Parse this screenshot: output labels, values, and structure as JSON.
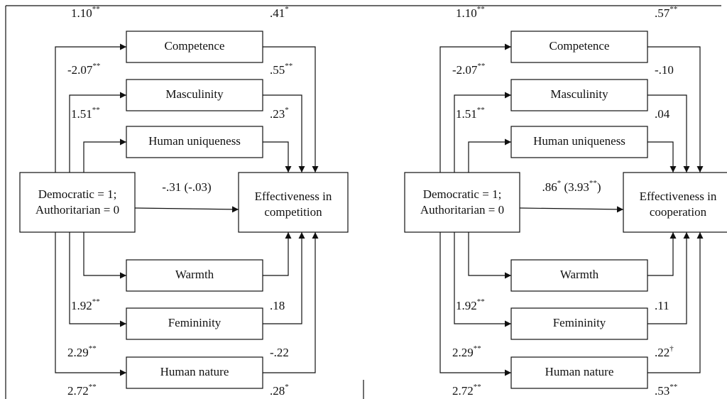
{
  "panels": [
    {
      "source_label": [
        "Democratic = 1;",
        "Authoritarian = 0"
      ],
      "outcome_label": [
        "Effectiveness in",
        "competition"
      ],
      "direct": [
        "-.31 (-.03)"
      ],
      "mediators": [
        {
          "name": "Competence",
          "a": [
            "1.10",
            "**"
          ],
          "b": [
            ".41",
            "*"
          ]
        },
        {
          "name": "Masculinity",
          "a": [
            "-2.07",
            "**"
          ],
          "b": [
            ".55",
            "**"
          ]
        },
        {
          "name": "Human uniqueness",
          "a": [
            "1.51",
            "**"
          ],
          "b": [
            ".23",
            "*"
          ]
        },
        {
          "name": "Warmth",
          "a": [
            "1.92",
            "**"
          ],
          "b": [
            ".18"
          ]
        },
        {
          "name": "Femininity",
          "a": [
            "2.29",
            "**"
          ],
          "b": [
            "-.22"
          ]
        },
        {
          "name": "Human nature",
          "a": [
            "2.72",
            "**"
          ],
          "b": [
            ".28",
            "*"
          ]
        }
      ]
    },
    {
      "source_label": [
        "Democratic = 1;",
        "Authoritarian = 0"
      ],
      "outcome_label": [
        "Effectiveness in",
        "cooperation"
      ],
      "direct": [
        ".86",
        "*",
        " (3.93",
        "**",
        ")"
      ],
      "mediators": [
        {
          "name": "Competence",
          "a": [
            "1.10",
            "**"
          ],
          "b": [
            ".57",
            "**"
          ]
        },
        {
          "name": "Masculinity",
          "a": [
            "-2.07",
            "**"
          ],
          "b": [
            "-.10"
          ]
        },
        {
          "name": "Human uniqueness",
          "a": [
            "1.51",
            "**"
          ],
          "b": [
            ".04"
          ]
        },
        {
          "name": "Warmth",
          "a": [
            "1.92",
            "**"
          ],
          "b": [
            ".11"
          ]
        },
        {
          "name": "Femininity",
          "a": [
            "2.29",
            "**"
          ],
          "b": [
            ".22",
            "†"
          ]
        },
        {
          "name": "Human nature",
          "a": [
            "2.72",
            "**"
          ],
          "b": [
            ".53",
            "**"
          ]
        }
      ]
    }
  ]
}
